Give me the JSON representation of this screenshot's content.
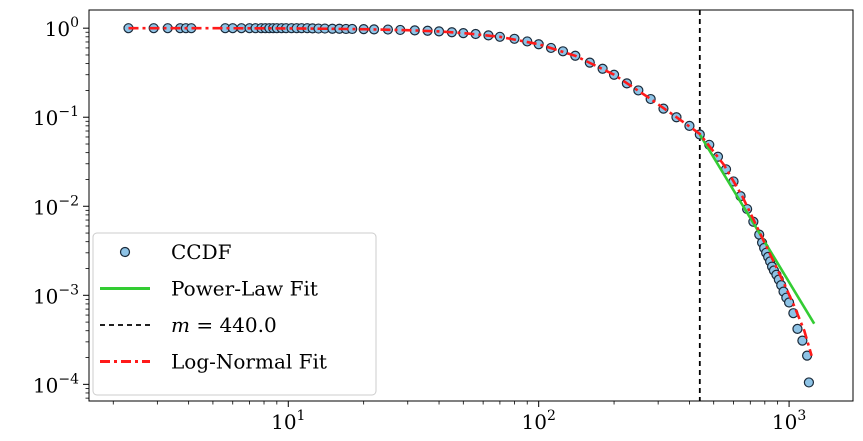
{
  "chart_data": {
    "type": "scatter",
    "x_scale": "log",
    "y_scale": "log",
    "xlim": [
      1.6,
      1800
    ],
    "ylim": [
      6.5e-05,
      1.6
    ],
    "x_ticks": [
      {
        "value": 10,
        "base": "10",
        "exp": "1"
      },
      {
        "value": 100,
        "base": "10",
        "exp": "2"
      },
      {
        "value": 1000,
        "base": "10",
        "exp": "3"
      }
    ],
    "y_ticks": [
      {
        "value": 1,
        "base": "10",
        "exp": "0"
      },
      {
        "value": 0.1,
        "base": "10",
        "exp": "−1"
      },
      {
        "value": 0.01,
        "base": "10",
        "exp": "−2"
      },
      {
        "value": 0.001,
        "base": "10",
        "exp": "−3"
      },
      {
        "value": 0.0001,
        "base": "10",
        "exp": "−4"
      }
    ],
    "grid": false,
    "legend_position": "lower-left",
    "xmin_line": {
      "value": 440.0,
      "label_var": "m",
      "label_rest": " = 440.0",
      "color": "#000000"
    },
    "series": [
      {
        "name": "CCDF",
        "kind": "scatter",
        "fill": "#8ec3e6",
        "stroke": "#1a2a3a",
        "points": [
          [
            2.3,
            1.0
          ],
          [
            2.9,
            1.0
          ],
          [
            3.3,
            1.0
          ],
          [
            3.7,
            1.0
          ],
          [
            3.9,
            1.0
          ],
          [
            4.1,
            1.0
          ],
          [
            5.6,
            1.0
          ],
          [
            6.0,
            1.0
          ],
          [
            6.5,
            1.0
          ],
          [
            7.0,
            1.0
          ],
          [
            7.4,
            1.0
          ],
          [
            7.8,
            1.0
          ],
          [
            8.1,
            1.0
          ],
          [
            8.4,
            1.0
          ],
          [
            8.7,
            1.0
          ],
          [
            9.0,
            1.0
          ],
          [
            9.4,
            1.0
          ],
          [
            9.8,
            1.0
          ],
          [
            10.3,
            1.0
          ],
          [
            10.8,
            1.0
          ],
          [
            11.3,
            1.0
          ],
          [
            11.9,
            1.0
          ],
          [
            12.5,
            0.995
          ],
          [
            13.2,
            0.99
          ],
          [
            14.0,
            0.99
          ],
          [
            15.0,
            0.985
          ],
          [
            16.0,
            0.985
          ],
          [
            17.0,
            0.98
          ],
          [
            18.0,
            0.98
          ],
          [
            20,
            0.975
          ],
          [
            22,
            0.97
          ],
          [
            25,
            0.965
          ],
          [
            28,
            0.955
          ],
          [
            32,
            0.945
          ],
          [
            36,
            0.935
          ],
          [
            40,
            0.92
          ],
          [
            45,
            0.9
          ],
          [
            50,
            0.88
          ],
          [
            56,
            0.86
          ],
          [
            63,
            0.83
          ],
          [
            70,
            0.8
          ],
          [
            80,
            0.76
          ],
          [
            90,
            0.71
          ],
          [
            100,
            0.66
          ],
          [
            112,
            0.6
          ],
          [
            125,
            0.55
          ],
          [
            140,
            0.49
          ],
          [
            160,
            0.41
          ],
          [
            180,
            0.35
          ],
          [
            200,
            0.3
          ],
          [
            225,
            0.24
          ],
          [
            250,
            0.2
          ],
          [
            280,
            0.16
          ],
          [
            315,
            0.125
          ],
          [
            355,
            0.1
          ],
          [
            400,
            0.08
          ],
          [
            440,
            0.064
          ],
          [
            480,
            0.049
          ],
          [
            520,
            0.036
          ],
          [
            560,
            0.026
          ],
          [
            600,
            0.019
          ],
          [
            640,
            0.013
          ],
          [
            680,
            0.0093
          ],
          [
            720,
            0.0067
          ],
          [
            760,
            0.0048
          ],
          [
            780,
            0.0039
          ],
          [
            795,
            0.0034
          ],
          [
            810,
            0.003
          ],
          [
            825,
            0.0027
          ],
          [
            840,
            0.0024
          ],
          [
            855,
            0.0021
          ],
          [
            870,
            0.0019
          ],
          [
            890,
            0.0017
          ],
          [
            910,
            0.0015
          ],
          [
            930,
            0.0013
          ],
          [
            950,
            0.0011
          ],
          [
            975,
            0.00094
          ],
          [
            1000,
            0.00083
          ],
          [
            1040,
            0.00063
          ],
          [
            1080,
            0.00042
          ],
          [
            1130,
            0.00031
          ],
          [
            1180,
            0.00021
          ],
          [
            1200,
            0.000105
          ]
        ]
      },
      {
        "name": "Power-Law Fit",
        "kind": "line",
        "color": "#33cc33",
        "dash": "",
        "points": [
          [
            440,
            0.064
          ],
          [
            1260,
            0.00048
          ]
        ]
      },
      {
        "name": "Log-Normal Fit",
        "kind": "line",
        "color": "#ff1a1a",
        "dash": "10,4,3,4",
        "points": [
          [
            2.3,
            1.0
          ],
          [
            5,
            1.0
          ],
          [
            10,
            0.995
          ],
          [
            15,
            0.985
          ],
          [
            20,
            0.975
          ],
          [
            30,
            0.95
          ],
          [
            40,
            0.92
          ],
          [
            50,
            0.88
          ],
          [
            70,
            0.8
          ],
          [
            100,
            0.66
          ],
          [
            140,
            0.49
          ],
          [
            200,
            0.3
          ],
          [
            280,
            0.16
          ],
          [
            355,
            0.1
          ],
          [
            440,
            0.065
          ],
          [
            550,
            0.029
          ],
          [
            650,
            0.013
          ],
          [
            760,
            0.0052
          ],
          [
            850,
            0.0027
          ],
          [
            950,
            0.0014
          ],
          [
            1050,
            0.00075
          ],
          [
            1150,
            0.0004
          ],
          [
            1230,
            0.00021
          ]
        ]
      }
    ],
    "legend": [
      {
        "label": "CCDF",
        "kind": "marker"
      },
      {
        "label": "Power-Law Fit",
        "kind": "line",
        "color": "#33cc33",
        "dash": ""
      },
      {
        "label_var": "m",
        "label": " = 440.0",
        "kind": "line",
        "color": "#000000",
        "dash": "5,4"
      },
      {
        "label": "Log-Normal Fit",
        "kind": "line",
        "color": "#ff1a1a",
        "dash": "10,4,3,4"
      }
    ]
  }
}
